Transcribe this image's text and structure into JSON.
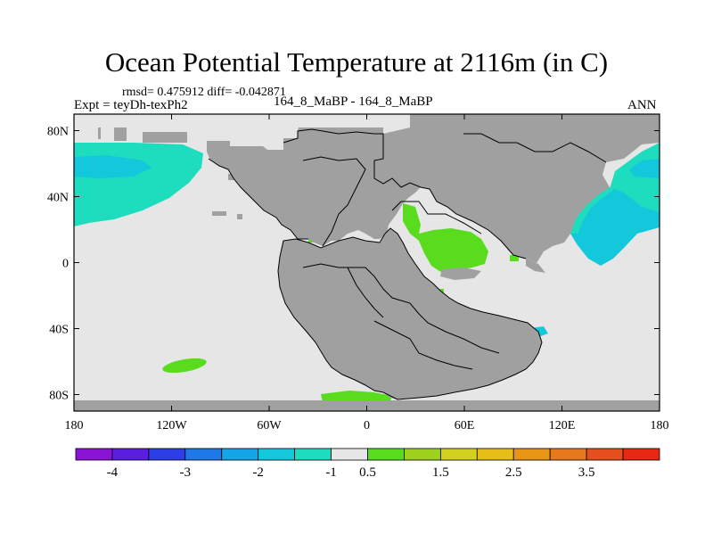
{
  "title": "Ocean Potential Temperature at 2116m (in C)",
  "stats": "rmsd= 0.475912 diff= -0.042871",
  "expt": "Expt = teyDh-texPh2",
  "cases": "164_8_MaBP - 164_8_MaBP",
  "season": "ANN",
  "map": {
    "lat_ticks": [
      {
        "value": 80,
        "label": "80N"
      },
      {
        "value": 40,
        "label": "40N"
      },
      {
        "value": 0,
        "label": "0"
      },
      {
        "value": -40,
        "label": "40S"
      },
      {
        "value": -80,
        "label": "80S"
      }
    ],
    "lon_ticks": [
      {
        "value": -180,
        "label": "180"
      },
      {
        "value": -120,
        "label": "120W"
      },
      {
        "value": -60,
        "label": "60W"
      },
      {
        "value": 0,
        "label": "0"
      },
      {
        "value": 60,
        "label": "60E"
      },
      {
        "value": 120,
        "label": "120E"
      },
      {
        "value": 180,
        "label": "180"
      }
    ],
    "lon_range": [
      -180,
      180
    ],
    "lat_range": [
      -90,
      90
    ],
    "land_color": "#a0a0a0",
    "ocean_color": "#e6e6e6"
  },
  "colorbar": {
    "colors": [
      "#8a14d6",
      "#5a1ee0",
      "#2d3ee6",
      "#1e78e6",
      "#14a5e6",
      "#14c8dc",
      "#1edcbe",
      "#e6e6e6",
      "#5adc1e",
      "#9ed21e",
      "#d2d21e",
      "#e6be14",
      "#e69614",
      "#e6781e",
      "#e6501e",
      "#e62814"
    ],
    "labels": [
      {
        "boundary": 1,
        "text": "-4"
      },
      {
        "boundary": 3,
        "text": "-3"
      },
      {
        "boundary": 5,
        "text": "-2"
      },
      {
        "boundary": 7,
        "text": "-1"
      },
      {
        "boundary": 8,
        "text": "0.5"
      },
      {
        "boundary": 10,
        "text": "1.5"
      },
      {
        "boundary": 12,
        "text": "2.5"
      },
      {
        "boundary": 14,
        "text": "3.5"
      }
    ]
  }
}
